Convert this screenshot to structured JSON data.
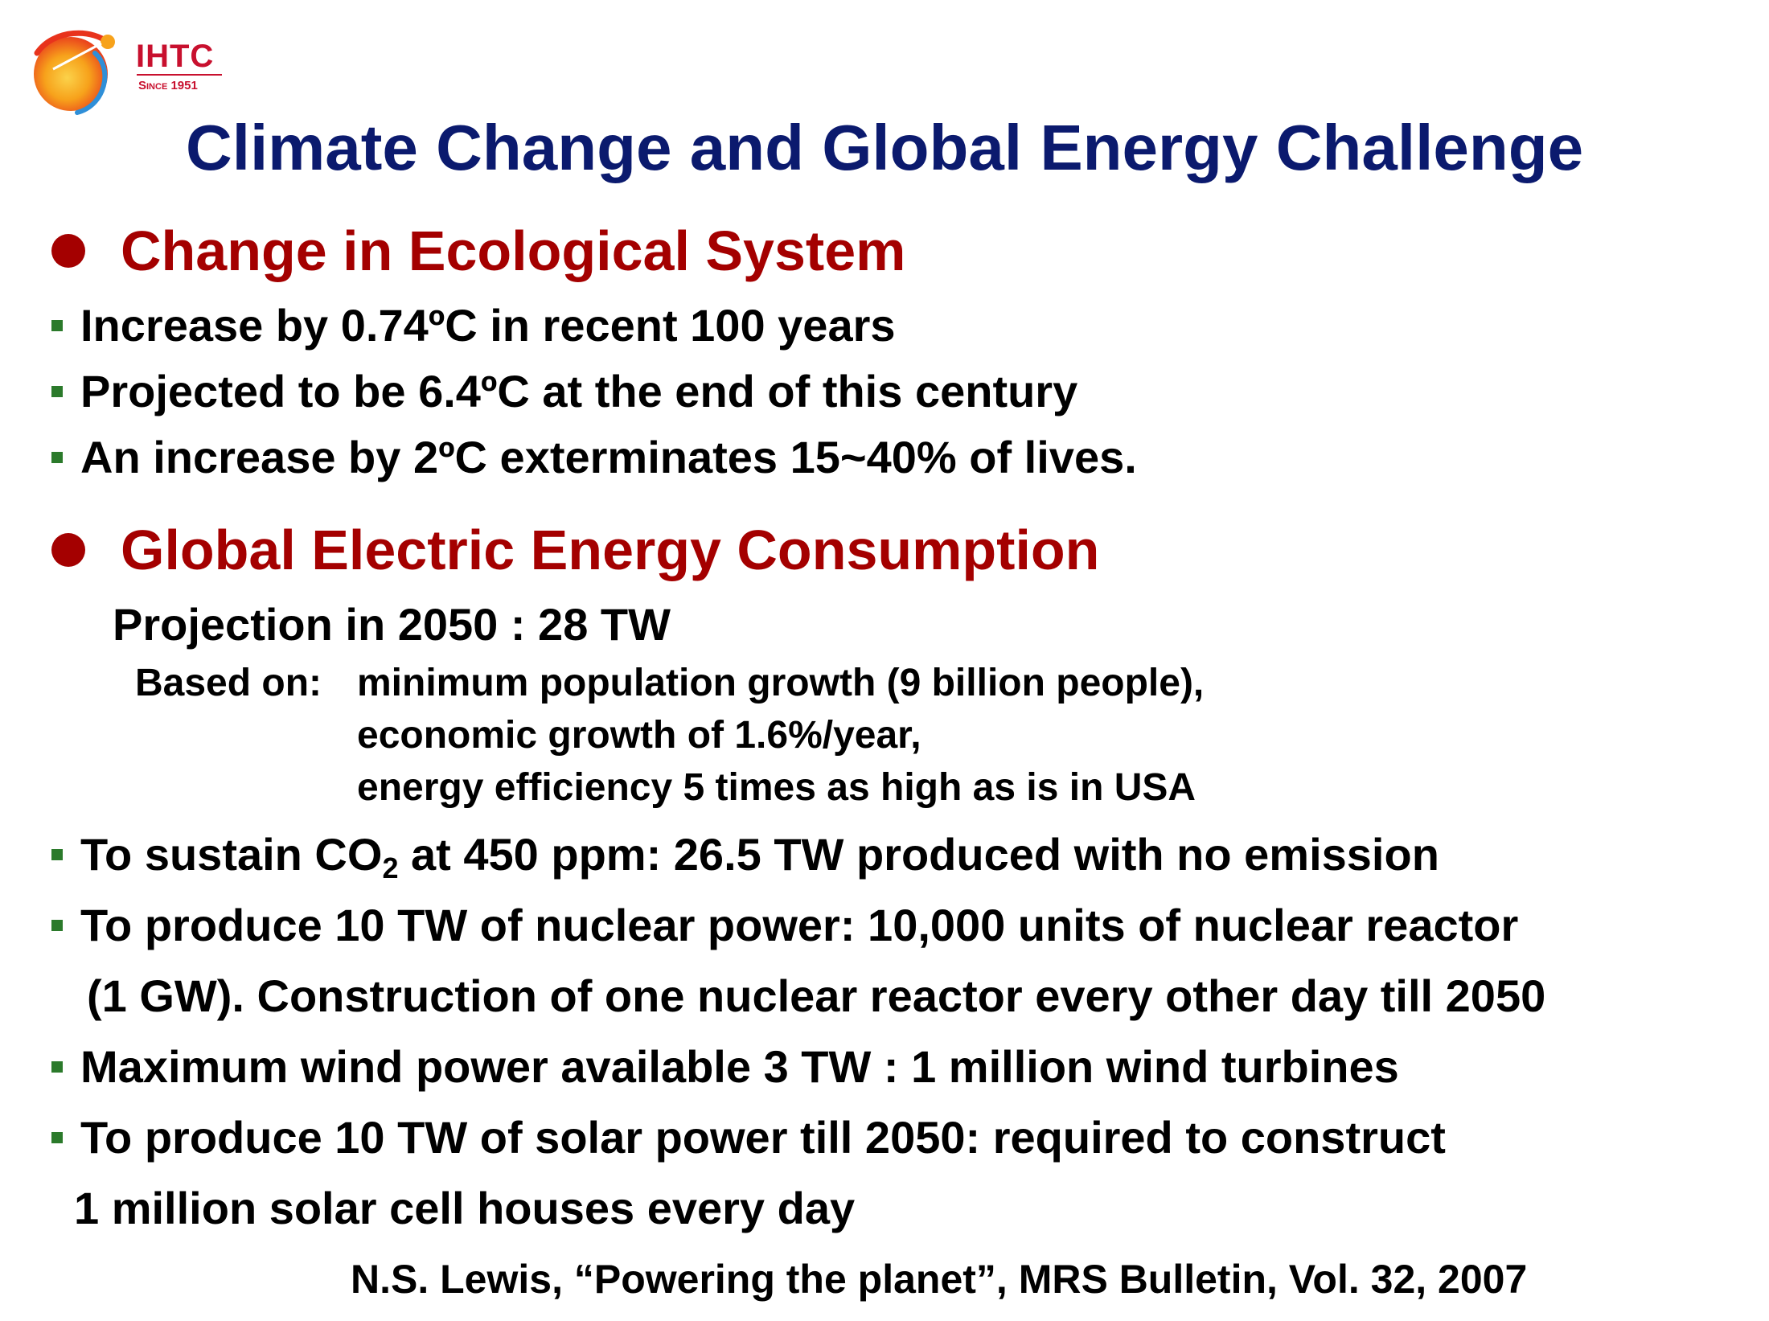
{
  "logo": {
    "name": "IHTC",
    "since": "Since 1951",
    "colors": {
      "text": "#c8102e",
      "red": "#e8331c",
      "orange": "#f7a21b",
      "blue": "#2f8fd8"
    }
  },
  "title": "Climate Change and Global Energy Challenge",
  "sections": [
    {
      "heading": "Change in Ecological System",
      "bullets": [
        "Increase by 0.74ºC in recent 100 years",
        "Projected to be 6.4ºC at the end of this century",
        "An increase by 2ºC exterminates 15~40% of lives."
      ]
    },
    {
      "heading": "Global Electric Energy Consumption",
      "projection": "Projection in 2050 : 28 TW",
      "based_on": {
        "label": "Based on:",
        "lines": [
          "minimum population growth (9 billion people),",
          "economic growth of 1.6%/year,",
          "energy efficiency 5 times as high as is in USA"
        ]
      },
      "co2_bullet": {
        "prefix": "To sustain CO",
        "sub": "2",
        "suffix": " at 450 ppm: 26.5 TW produced with no emission"
      },
      "bullets": [
        "To produce 10 TW of nuclear power: 10,000 units of nuclear reactor",
        "Maximum wind power available 3 TW : 1 million wind turbines",
        "To produce 10 TW of solar power till 2050: required to construct"
      ],
      "continuations": [
        "(1 GW). Construction of one nuclear reactor every other day till 2050",
        "1 million solar cell houses every day"
      ]
    }
  ],
  "citation": "N.S. Lewis, “Powering the planet”, MRS Bulletin, Vol. 32, 2007",
  "colors": {
    "title": "#0b1a6e",
    "heading": "#a40000",
    "bullet": "#2b7a2b",
    "text": "#000000"
  }
}
